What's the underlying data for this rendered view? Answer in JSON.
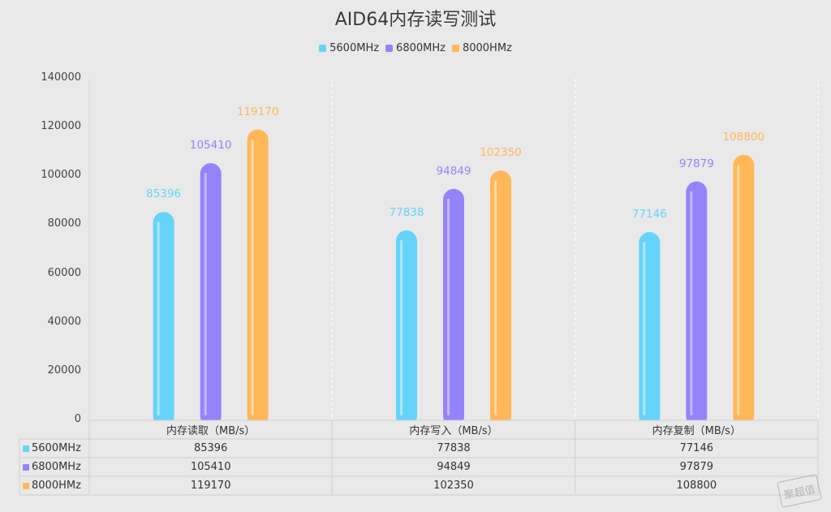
{
  "chart_data": {
    "type": "bar",
    "title": "AID64内存读写测试",
    "categories": [
      "内存读取（MB/s）",
      "内存写入（MB/s）",
      "内存复制（MB/s）"
    ],
    "series": [
      {
        "name": "5600MHz",
        "color": "#66d3fb",
        "values": [
          85396,
          77838,
          77146
        ]
      },
      {
        "name": "6800MHz",
        "color": "#9484fa",
        "values": [
          105410,
          94849,
          97879
        ]
      },
      {
        "name": "8000HMz",
        "color": "#ffb758",
        "values": [
          119170,
          102350,
          108800
        ]
      }
    ],
    "ylim": [
      0,
      140000
    ],
    "yticks": [
      0,
      20000,
      40000,
      60000,
      80000,
      100000,
      120000,
      140000
    ],
    "grid": "vertical dashed",
    "legend": "top-center",
    "data_table": true
  },
  "watermark_text": "聚超值"
}
